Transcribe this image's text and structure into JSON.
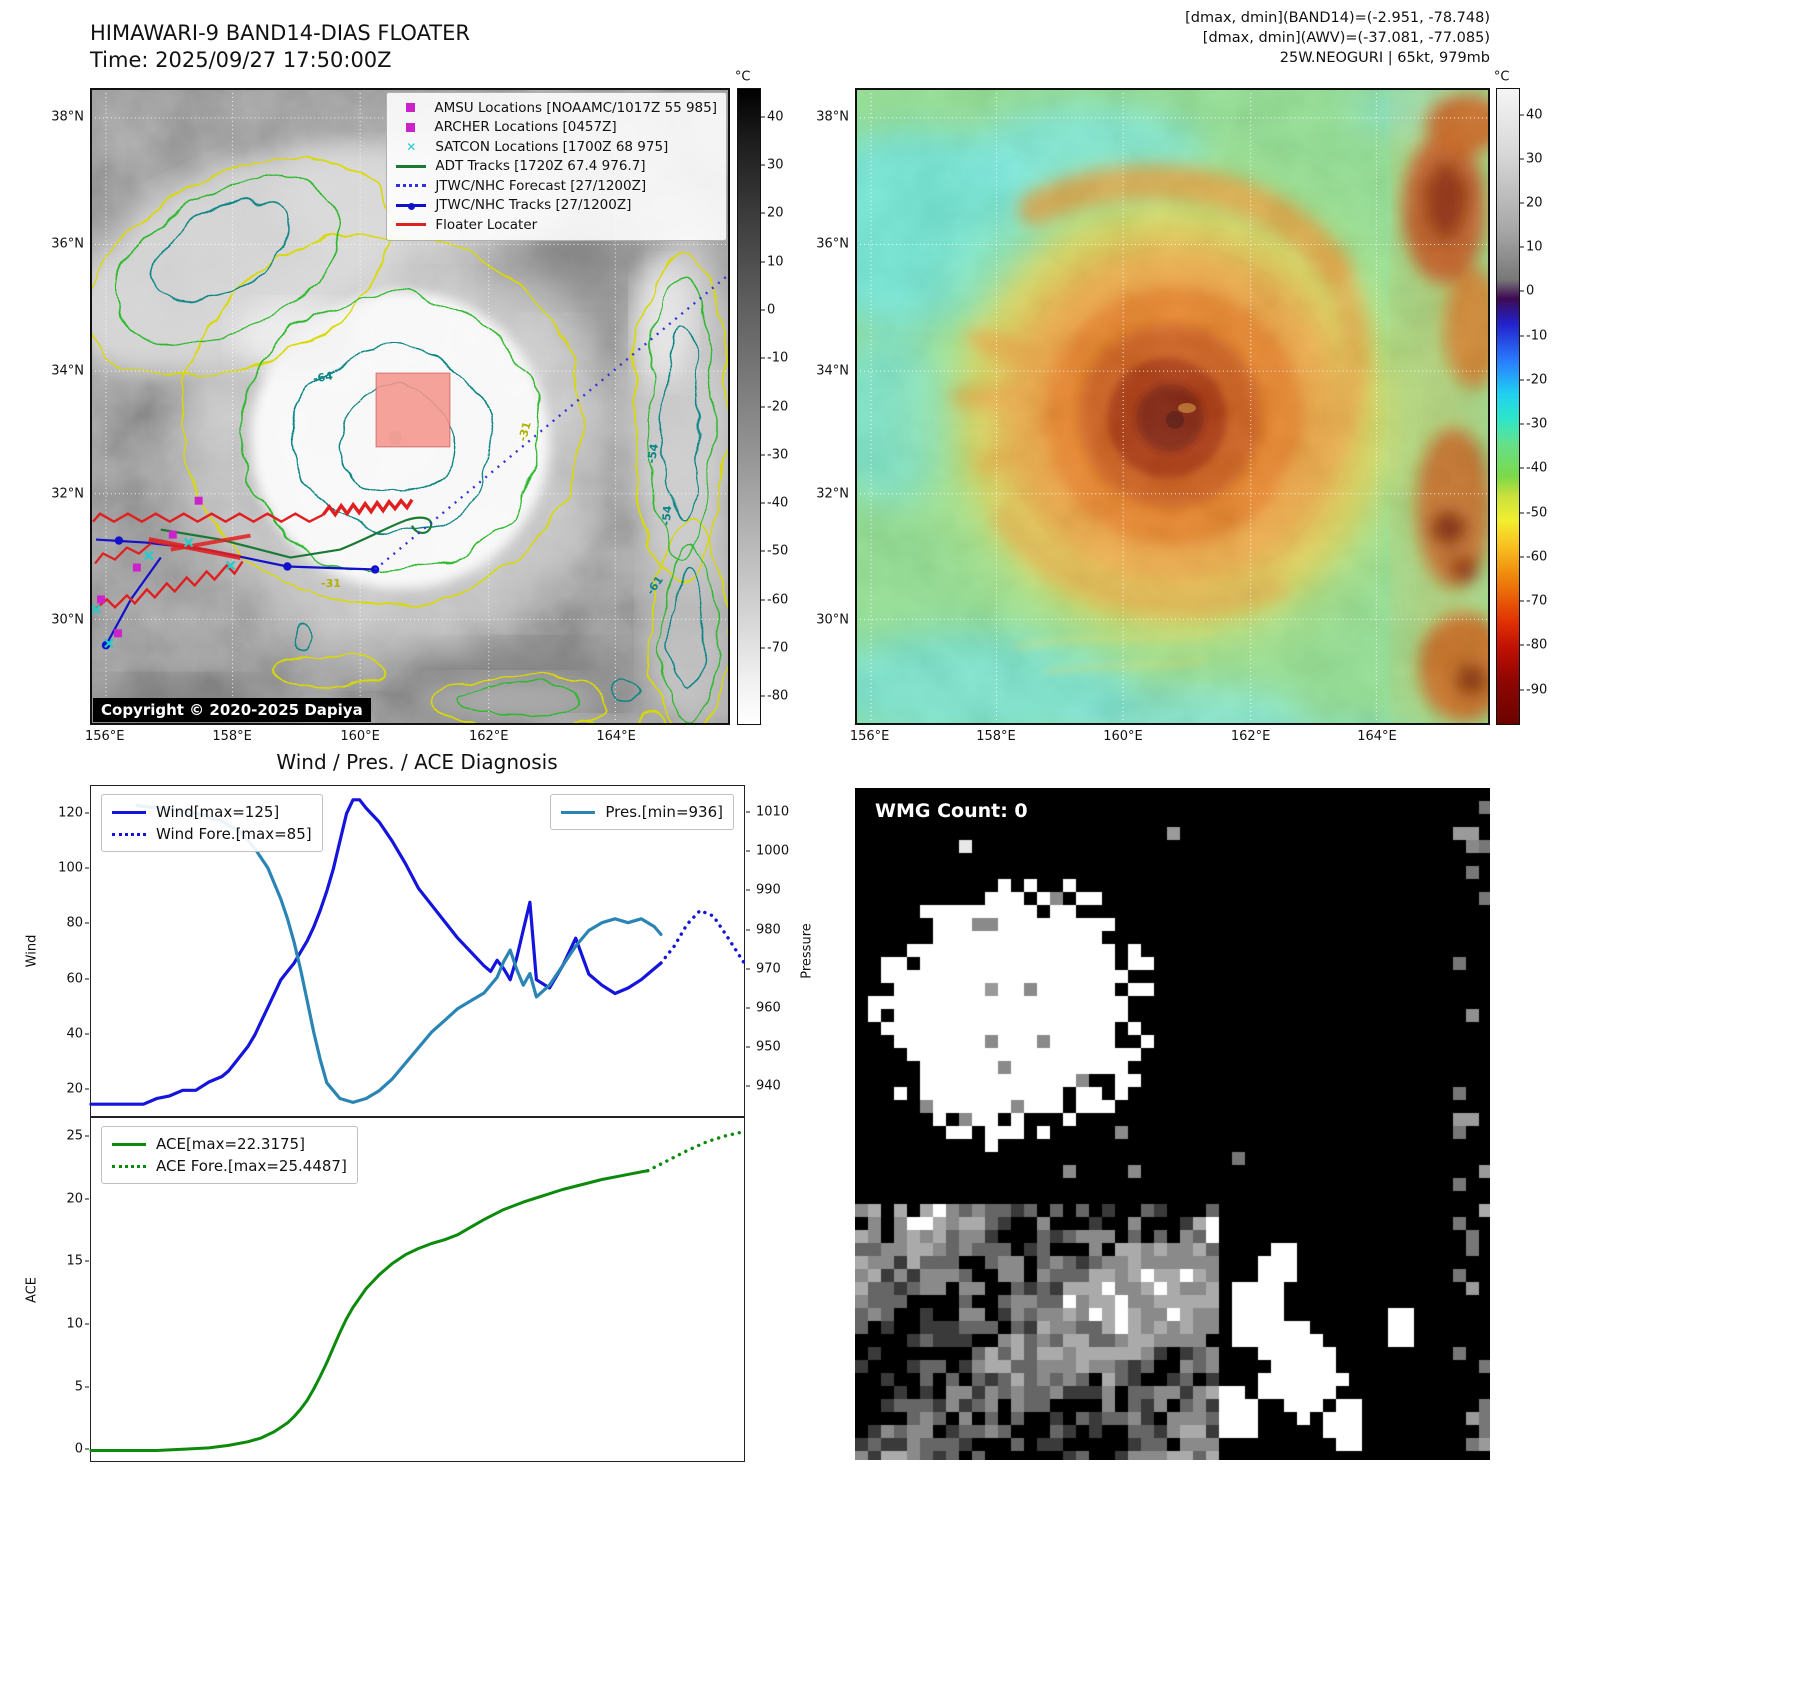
{
  "panel_band14": {
    "title": "HIMAWARI-9 BAND14-DIAS FLOATER",
    "time": "Time: 2025/09/27 17:50:00Z",
    "copyright": "Copyright © 2020-2025 Dapiya",
    "legend": [
      {
        "label": "AMSU Locations [NOAAMC/1017Z 55 985]",
        "marker": "square",
        "color": "#cc22cc"
      },
      {
        "label": "ARCHER Locations [0457Z]",
        "marker": "square",
        "color": "#cc22cc"
      },
      {
        "label": "SATCON Locations [1700Z 68 975]",
        "marker": "x",
        "color": "#22cccc"
      },
      {
        "label": "ADT Tracks [1720Z 67.4 976.7]",
        "marker": "line",
        "color": "#1a7a33"
      },
      {
        "label": "JTWC/NHC Forecast [27/1200Z]",
        "marker": "dotted",
        "color": "#3333dd"
      },
      {
        "label": "JTWC/NHC Tracks [27/1200Z]",
        "marker": "line-dot",
        "color": "#1111cc"
      },
      {
        "label": "Floater Locater",
        "marker": "line",
        "color": "#dd2222"
      }
    ],
    "lat_ticks": [
      "38°N",
      "36°N",
      "34°N",
      "32°N",
      "30°N"
    ],
    "lon_ticks": [
      "156°E",
      "158°E",
      "160°E",
      "162°E",
      "164°E"
    ],
    "colorbar": {
      "unit": "°C",
      "range": [
        46,
        -86
      ],
      "ticks": [
        40,
        30,
        20,
        10,
        0,
        -10,
        -20,
        -30,
        -40,
        -50,
        -60,
        -70,
        -80
      ]
    },
    "contour_labels": [
      "-64",
      "-31",
      "-54",
      "-54",
      "-31",
      "-61"
    ]
  },
  "panel_awv": {
    "header_lines": [
      "[dmax, dmin](BAND14)=(-2.951, -78.748)",
      "[dmax, dmin](AWV)=(-37.081, -77.085)",
      "25W.NEOGURI | 65kt, 979mb"
    ],
    "lat_ticks": [
      "38°N",
      "36°N",
      "34°N",
      "32°N",
      "30°N"
    ],
    "lon_ticks": [
      "156°E",
      "158°E",
      "160°E",
      "162°E",
      "164°E"
    ],
    "colorbar": {
      "unit": "°C",
      "range": [
        46,
        -98
      ],
      "ticks": [
        40,
        30,
        20,
        10,
        0,
        -10,
        -20,
        -30,
        -40,
        -50,
        -60,
        -70,
        -80,
        -90
      ]
    }
  },
  "diagnosis": {
    "title": "Wind / Pres. / ACE Diagnosis"
  },
  "wmg": {
    "label": "WMG Count: 0"
  },
  "chart_data": [
    {
      "id": "wind-pres",
      "type": "line",
      "title": "Wind / Pres. / ACE Diagnosis",
      "xlabel": "",
      "ylabel_left": "Wind",
      "ylabel_right": "Pressure",
      "xlim": [
        0,
        100
      ],
      "ylim_left": [
        10,
        130
      ],
      "ylim_right": [
        932,
        1017
      ],
      "yticks_left": [
        20,
        40,
        60,
        80,
        100,
        120
      ],
      "yticks_right": [
        940,
        950,
        960,
        970,
        980,
        990,
        1000,
        1010
      ],
      "grid": false,
      "legend_position": "upper-left-and-upper-right",
      "series": [
        {
          "name": "Wind[max=125]",
          "axis": "left",
          "color": "#1414dd",
          "style": "solid",
          "width": 3.2,
          "x": [
            0,
            4,
            8,
            10,
            12,
            14,
            16,
            18,
            20,
            21,
            22,
            23,
            24,
            25,
            26,
            27,
            28,
            29,
            30,
            31,
            32,
            33,
            34,
            35,
            36,
            37,
            38,
            39,
            40,
            41,
            42,
            44,
            46,
            48,
            50,
            52,
            54,
            56,
            58,
            60,
            61,
            62,
            63,
            64,
            65,
            66,
            67,
            68,
            70,
            72,
            74,
            76,
            78,
            80,
            82,
            84,
            85,
            86,
            87
          ],
          "y": [
            15,
            15,
            15,
            17,
            18,
            20,
            20,
            23,
            25,
            27,
            30,
            33,
            36,
            40,
            45,
            50,
            55,
            60,
            63,
            66,
            70,
            74,
            79,
            85,
            92,
            100,
            110,
            120,
            125,
            125,
            122,
            117,
            110,
            102,
            93,
            87,
            81,
            75,
            70,
            65,
            63,
            67,
            64,
            60,
            68,
            78,
            88,
            60,
            57,
            65,
            75,
            62,
            58,
            55,
            57,
            60,
            62,
            64,
            66
          ]
        },
        {
          "name": "Wind Fore.[max=85]",
          "axis": "left",
          "color": "#1414dd",
          "style": "dotted",
          "width": 3.4,
          "x": [
            87,
            89,
            91,
            93,
            95,
            97,
            100
          ],
          "y": [
            66,
            72,
            80,
            85,
            83,
            76,
            65
          ]
        },
        {
          "name": "Pres.[min=936]",
          "axis": "right",
          "color": "#2a85b5",
          "style": "solid",
          "width": 3.2,
          "x": [
            7,
            12,
            16,
            20,
            23,
            25,
            27,
            28,
            29,
            30,
            31,
            32,
            33,
            34,
            35,
            36,
            38,
            40,
            42,
            44,
            46,
            48,
            50,
            52,
            54,
            56,
            58,
            60,
            62,
            63,
            64,
            65,
            66,
            67,
            68,
            70,
            72,
            74,
            76,
            78,
            80,
            82,
            84,
            86,
            87
          ],
          "y": [
            1012,
            1011,
            1010,
            1008,
            1005,
            1001,
            996,
            992,
            988,
            983,
            977,
            970,
            962,
            954,
            947,
            941,
            937,
            936,
            937,
            939,
            942,
            946,
            950,
            954,
            957,
            960,
            962,
            964,
            968,
            972,
            975,
            970,
            966,
            969,
            963,
            966,
            971,
            976,
            980,
            982,
            983,
            982,
            983,
            981,
            979
          ]
        }
      ]
    },
    {
      "id": "ace",
      "type": "line",
      "title": "",
      "xlabel": "",
      "ylabel_left": "ACE",
      "xlim": [
        0,
        100
      ],
      "ylim_left": [
        -1,
        26.5
      ],
      "yticks_left": [
        0,
        5,
        10,
        15,
        20,
        25
      ],
      "grid": false,
      "legend_position": "upper-left",
      "series": [
        {
          "name": "ACE[max=22.3175]",
          "axis": "left",
          "color": "#0b8a0b",
          "style": "solid",
          "width": 3,
          "x": [
            0,
            5,
            10,
            14,
            18,
            21,
            24,
            26,
            28,
            30,
            31,
            32,
            33,
            34,
            35,
            36,
            37,
            38,
            39,
            40,
            42,
            44,
            46,
            48,
            50,
            52,
            54,
            56,
            58,
            60,
            63,
            66,
            69,
            72,
            75,
            78,
            81,
            84,
            85
          ],
          "y": [
            0,
            0,
            0,
            0.1,
            0.2,
            0.4,
            0.7,
            1.0,
            1.5,
            2.2,
            2.7,
            3.3,
            4.0,
            4.9,
            5.9,
            7.0,
            8.2,
            9.4,
            10.5,
            11.4,
            12.9,
            14.0,
            14.9,
            15.6,
            16.1,
            16.5,
            16.8,
            17.2,
            17.8,
            18.4,
            19.2,
            19.8,
            20.3,
            20.8,
            21.2,
            21.6,
            21.9,
            22.2,
            22.3
          ]
        },
        {
          "name": "ACE Fore.[max=25.4487]",
          "axis": "left",
          "color": "#0b8a0b",
          "style": "dotted",
          "width": 3.4,
          "x": [
            85,
            88,
            91,
            94,
            97,
            100
          ],
          "y": [
            22.3,
            23.1,
            23.9,
            24.6,
            25.1,
            25.45
          ]
        }
      ]
    }
  ]
}
